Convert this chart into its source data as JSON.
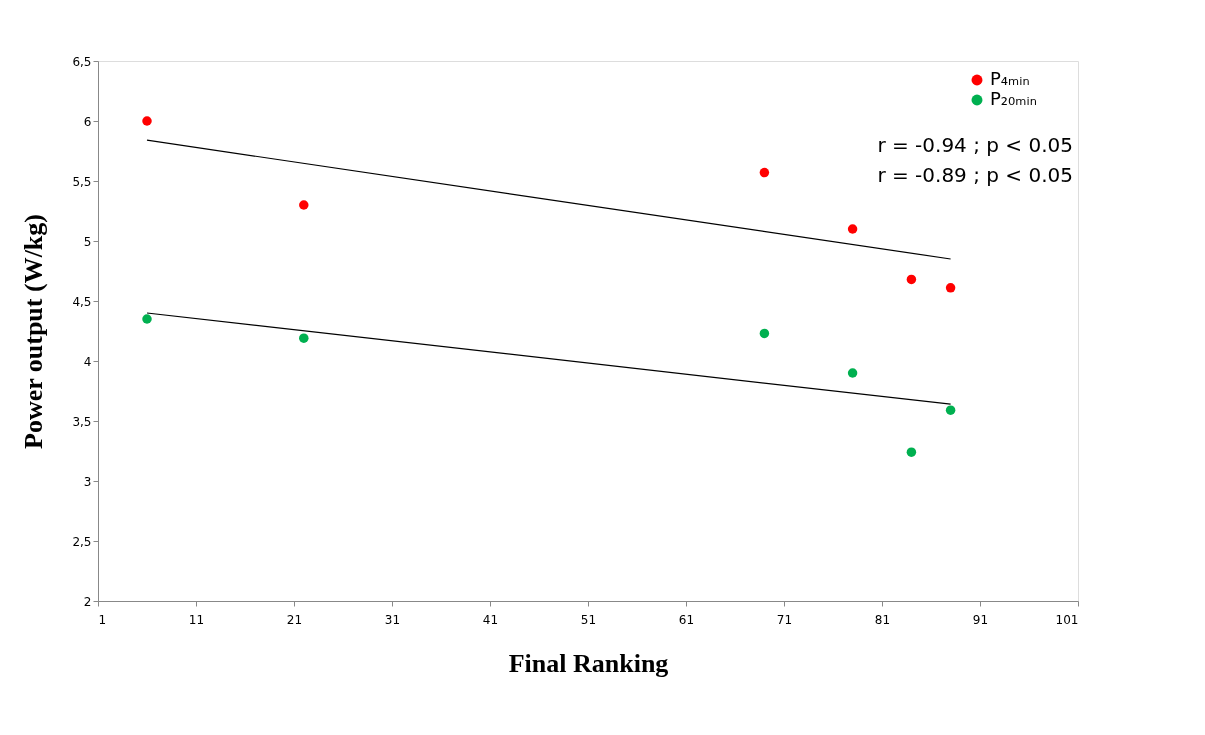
{
  "chart_data": {
    "type": "scatter",
    "xlabel": "Final Ranking",
    "ylabel": "Power output  (W/kg)",
    "xlim": [
      1,
      101
    ],
    "xticks": [
      1,
      11,
      21,
      31,
      41,
      51,
      61,
      71,
      81,
      91,
      101
    ],
    "ylim": [
      2,
      6.5
    ],
    "yticks": [
      2,
      {
        "value": 2.5,
        "label": "2,5"
      },
      3,
      {
        "value": 3.5,
        "label": "3,5"
      },
      4,
      {
        "value": 4.5,
        "label": "4,5"
      },
      5,
      {
        "value": 5.5,
        "label": "5,5"
      },
      6,
      {
        "value": 6.5,
        "label": "6,5"
      }
    ],
    "grid": false,
    "legend": "top right",
    "marker": "circle",
    "series": [
      {
        "name": "P₄ₘᵢₙ",
        "color": "#ff0000",
        "x": [
          6,
          22,
          69,
          78,
          84,
          88
        ],
        "values": [
          6.0,
          5.3,
          5.57,
          5.1,
          4.68,
          4.61
        ]
      },
      {
        "name": "P₂₀ₘᵢₙ",
        "color": "#00b050",
        "x": [
          6,
          22,
          69,
          78,
          84,
          88
        ],
        "values": [
          4.35,
          4.19,
          4.23,
          3.9,
          3.24,
          3.59
        ]
      },
      {
        "type": "line",
        "marker": "none",
        "color": "#000000",
        "x": [
          6,
          88
        ],
        "values": [
          5.84,
          4.85
        ]
      },
      {
        "type": "line",
        "marker": "none",
        "color": "#000000",
        "x": [
          6,
          88
        ],
        "values": [
          4.4,
          3.64
        ]
      }
    ],
    "annotations": [
      "r = -0.94 ; p < 0.05",
      "r = -0.89 ; p < 0.05"
    ]
  }
}
